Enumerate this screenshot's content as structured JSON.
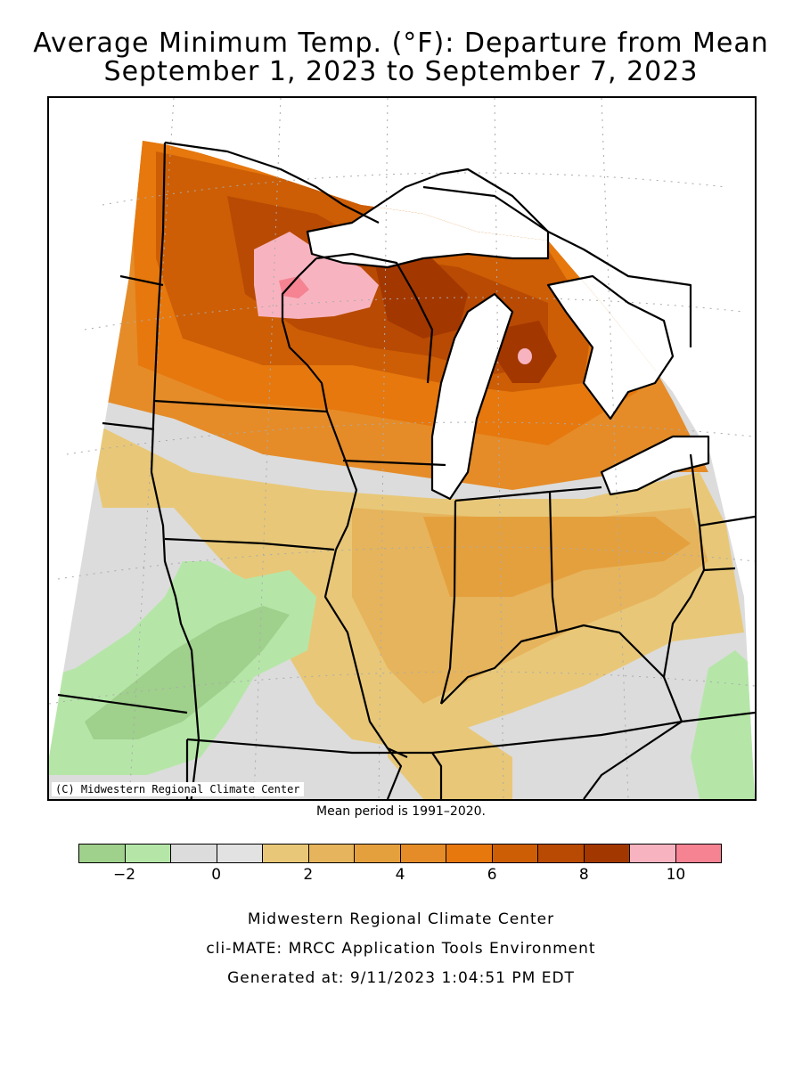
{
  "title_line1": "Average Minimum Temp. (°F): Departure from Mean",
  "title_line2": "September 1, 2023 to September 7, 2023",
  "map": {
    "copyright": "(C) Midwestern Regional Climate Center",
    "water_color": "#ffffff",
    "boundary_color": "#000000"
  },
  "mean_note": "Mean period is 1991–2020.",
  "legend": {
    "colors": [
      "#9fd08c",
      "#b5e6a8",
      "#dcdcdc",
      "#e2e2e2",
      "#e8c878",
      "#e6b45c",
      "#e5a03e",
      "#e58c28",
      "#e6780e",
      "#cd5e05",
      "#b84a03",
      "#a33700",
      "#f7b4c0",
      "#f58392"
    ],
    "tick_labels": [
      "−2",
      "0",
      "2",
      "4",
      "6",
      "8",
      "10"
    ]
  },
  "footer": {
    "line1": "Midwestern Regional Climate Center",
    "line2": "cli-MATE: MRCC Application Tools Environment",
    "line3": "Generated at: 9/11/2023 1:04:51 PM EDT"
  }
}
